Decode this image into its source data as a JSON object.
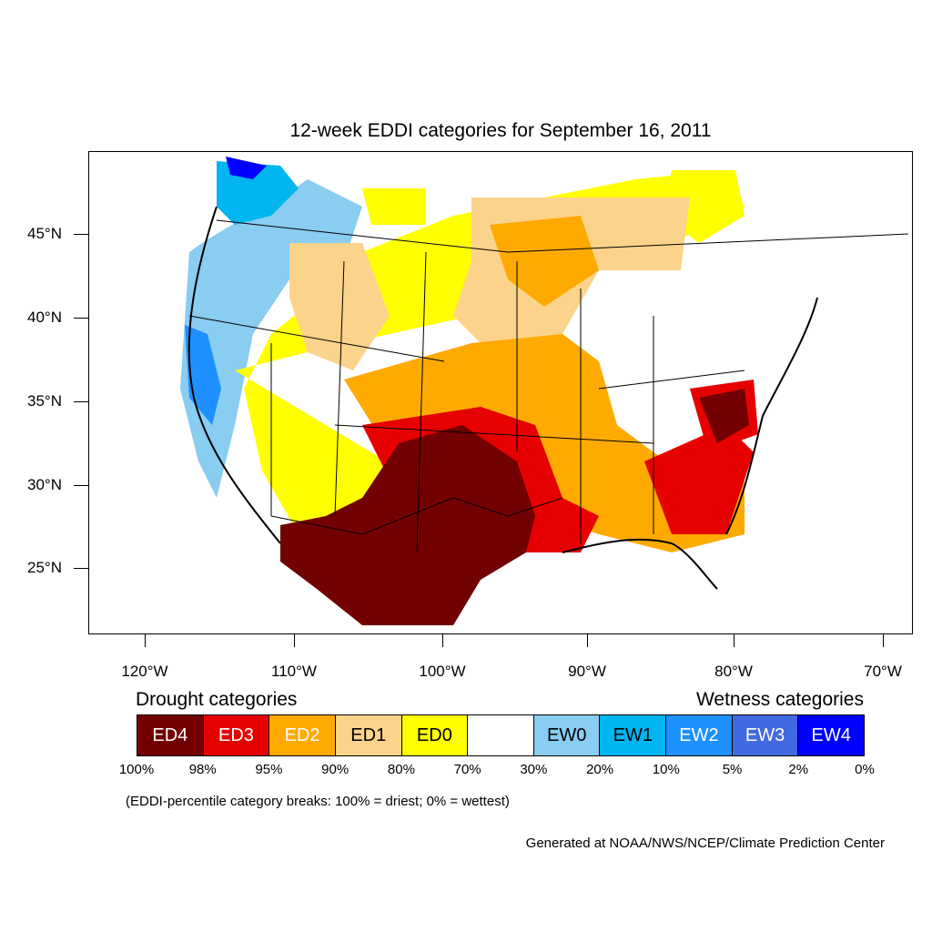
{
  "title": "12-week EDDI categories for September 16, 2011",
  "lat_labels": [
    "45°N",
    "40°N",
    "35°N",
    "30°N",
    "25°N"
  ],
  "lon_labels": [
    "120°W",
    "110°W",
    "100°W",
    "90°W",
    "80°W",
    "70°W"
  ],
  "legend": {
    "drought_heading": "Drought categories",
    "wetness_heading": "Wetness categories",
    "categories": [
      {
        "label": "ED4",
        "color": "#730000",
        "text_color": "#ffffff"
      },
      {
        "label": "ED3",
        "color": "#e60000",
        "text_color": "#ffffff"
      },
      {
        "label": "ED2",
        "color": "#ffaa00",
        "text_color": "#ffffff"
      },
      {
        "label": "ED1",
        "color": "#fcd38b",
        "text_color": "#000000"
      },
      {
        "label": "ED0",
        "color": "#ffff00",
        "text_color": "#000000"
      },
      {
        "label": "",
        "color": "#ffffff",
        "text_color": "#000000"
      },
      {
        "label": "EW0",
        "color": "#89cdf0",
        "text_color": "#000000"
      },
      {
        "label": "EW1",
        "color": "#00b5f0",
        "text_color": "#000000"
      },
      {
        "label": "EW2",
        "color": "#1e90ff",
        "text_color": "#ffffff"
      },
      {
        "label": "EW3",
        "color": "#4169e1",
        "text_color": "#ffffff"
      },
      {
        "label": "EW4",
        "color": "#0000ff",
        "text_color": "#ffffff"
      }
    ],
    "percentiles": [
      "100%",
      "98%",
      "95%",
      "90%",
      "80%",
      "70%",
      "30%",
      "20%",
      "10%",
      "5%",
      "2%",
      "0%"
    ]
  },
  "note": "(EDDI-percentile category breaks: 100% = driest; 0% = wettest)",
  "credit": "Generated at NOAA/NWS/NCEP/Climate Prediction Center"
}
